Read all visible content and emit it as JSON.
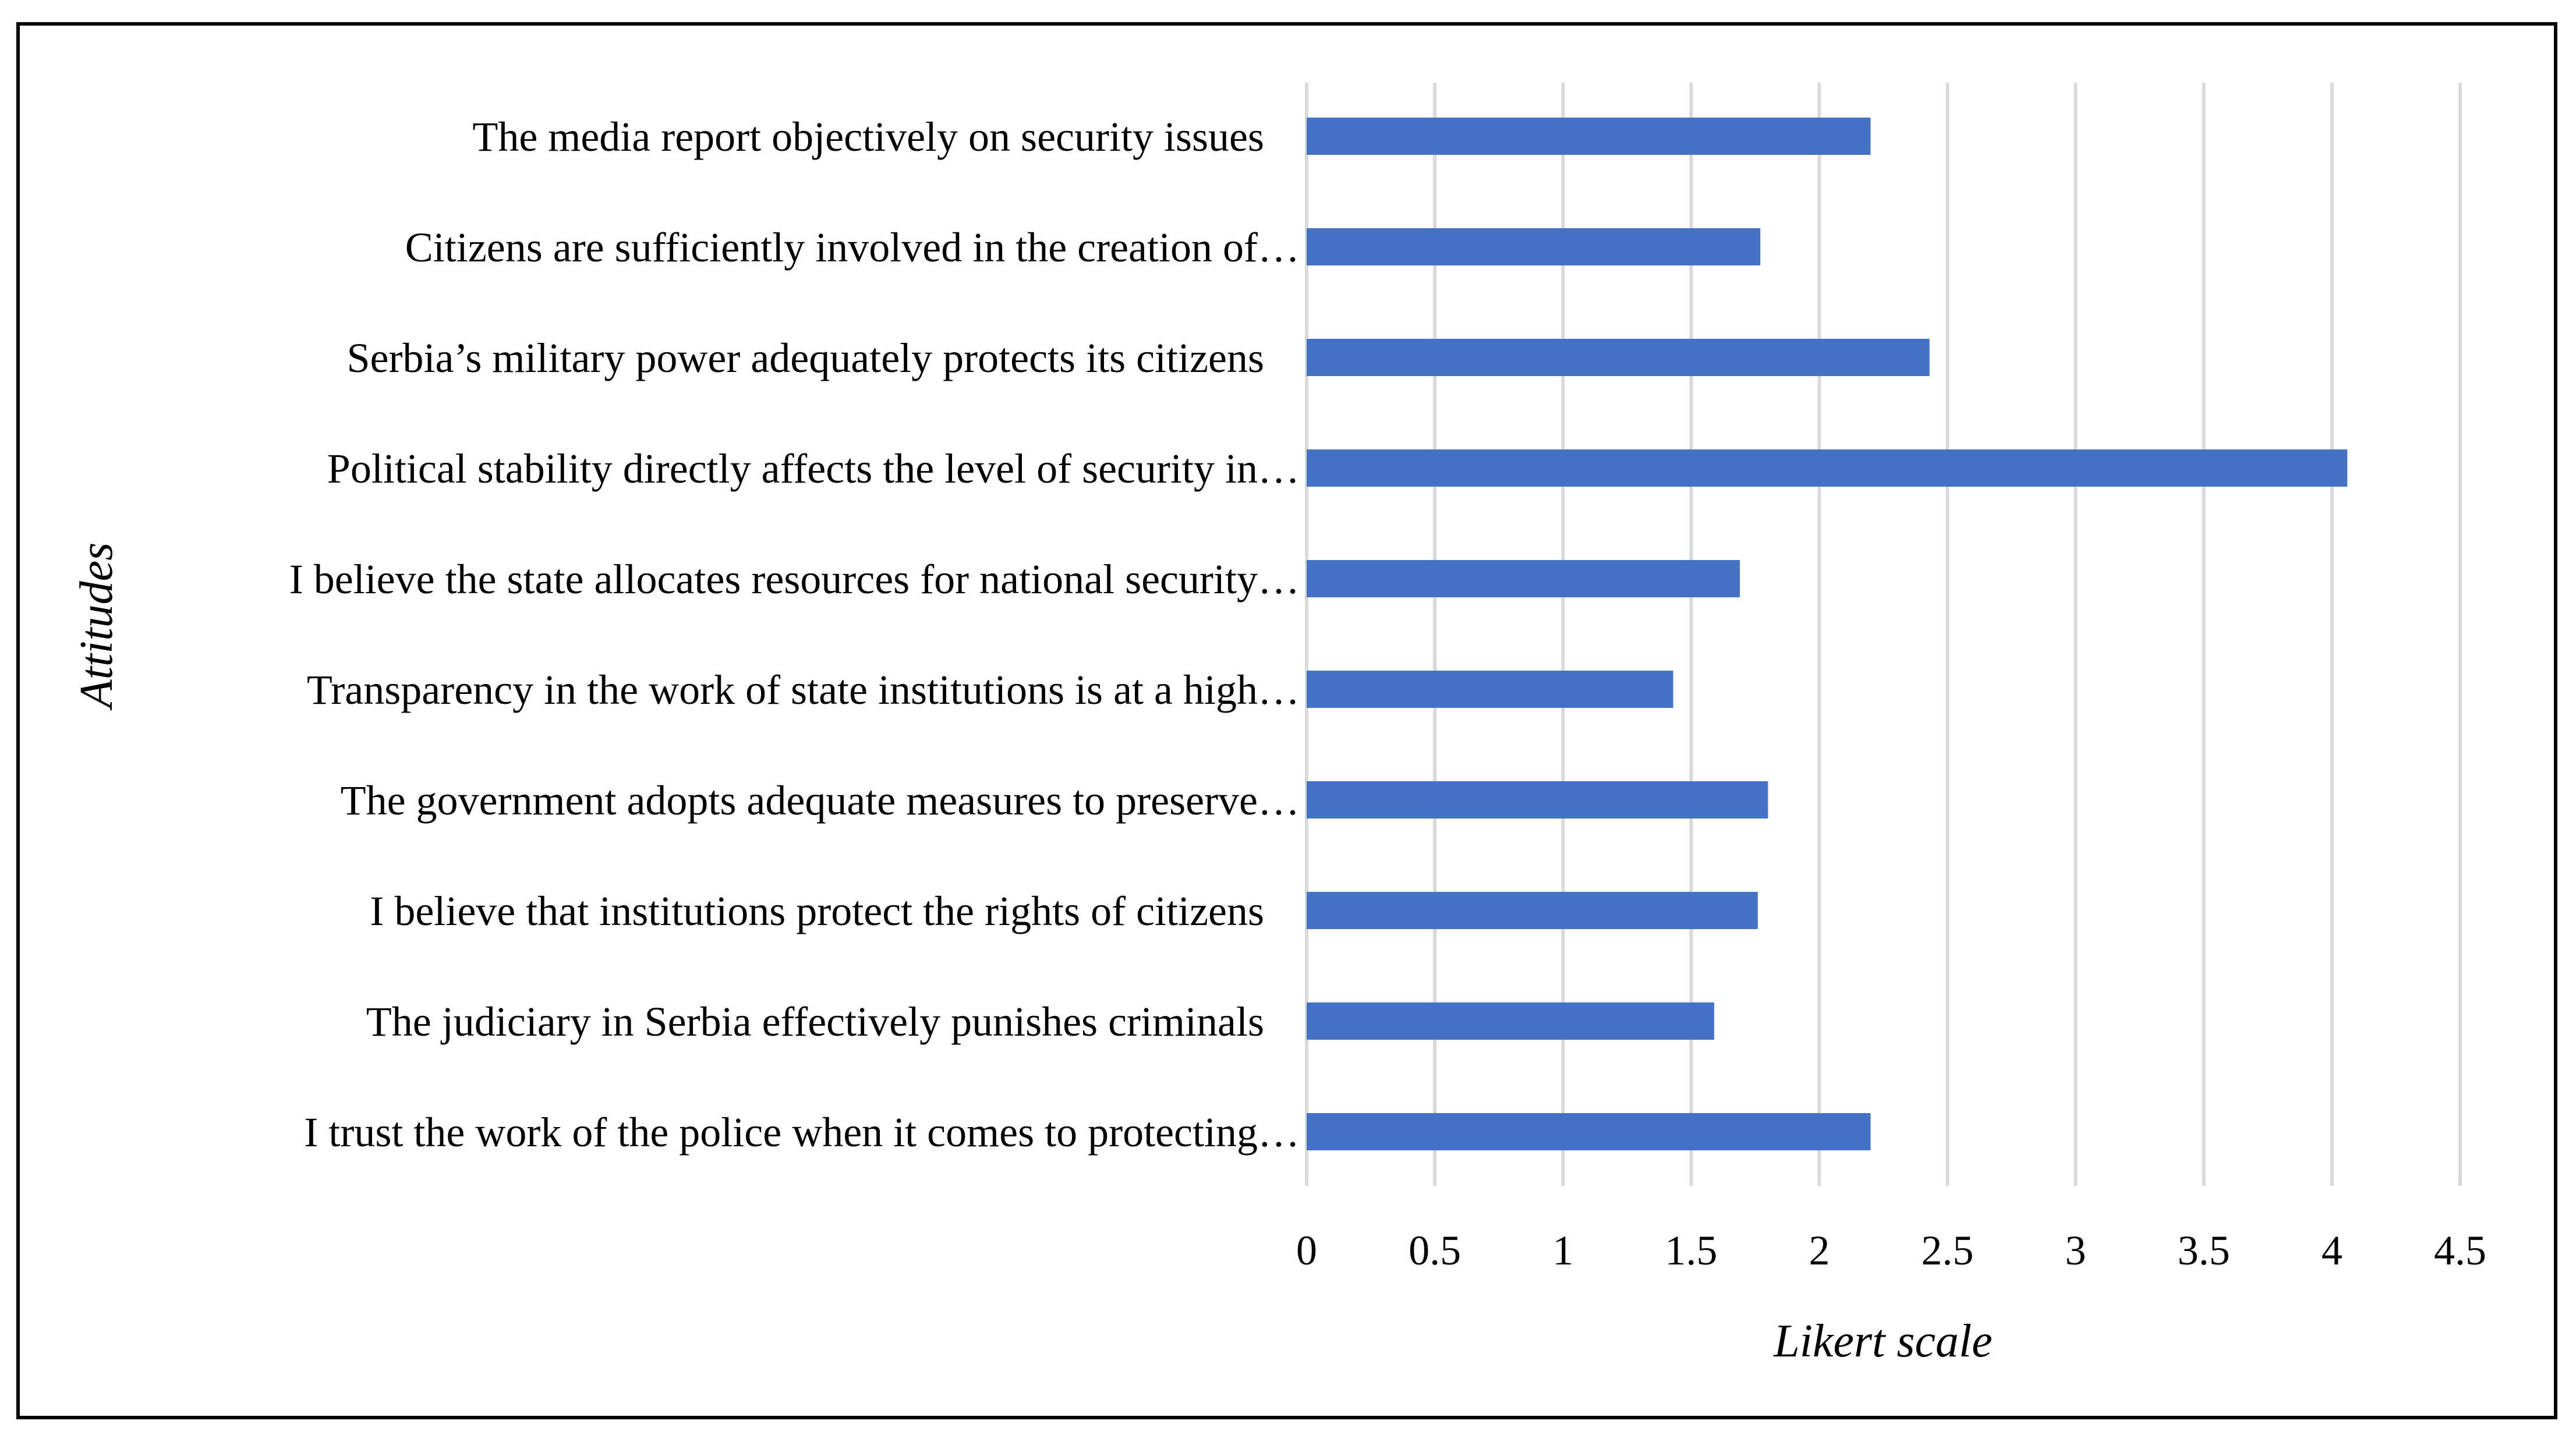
{
  "chart_data": {
    "type": "bar",
    "orientation": "horizontal",
    "title": "",
    "xlabel": "Likert scale",
    "ylabel": "Attitudes",
    "xlim": [
      0,
      4.5
    ],
    "grid": true,
    "bar_color": "#4472c4",
    "x_ticks": [
      "0",
      "0.5",
      "1",
      "1.5",
      "2",
      "2.5",
      "3",
      "3.5",
      "4",
      "4.5"
    ],
    "categories": [
      "The media report objectively on security issues",
      "Citizens are sufficiently involved in the creation of…",
      "Serbia’s military power adequately protects its citizens",
      "Political stability directly affects the level of security in…",
      "I believe the state allocates resources for national security…",
      "Transparency in the work of state institutions is at a high…",
      "The government adopts adequate measures to preserve…",
      "I believe that institutions protect the rights of citizens",
      "The judiciary in Serbia effectively punishes criminals",
      "I trust the work of the police when it comes to protecting…"
    ],
    "values": [
      2.2,
      1.77,
      2.43,
      4.06,
      1.69,
      1.43,
      1.8,
      1.76,
      1.59,
      2.2
    ]
  }
}
